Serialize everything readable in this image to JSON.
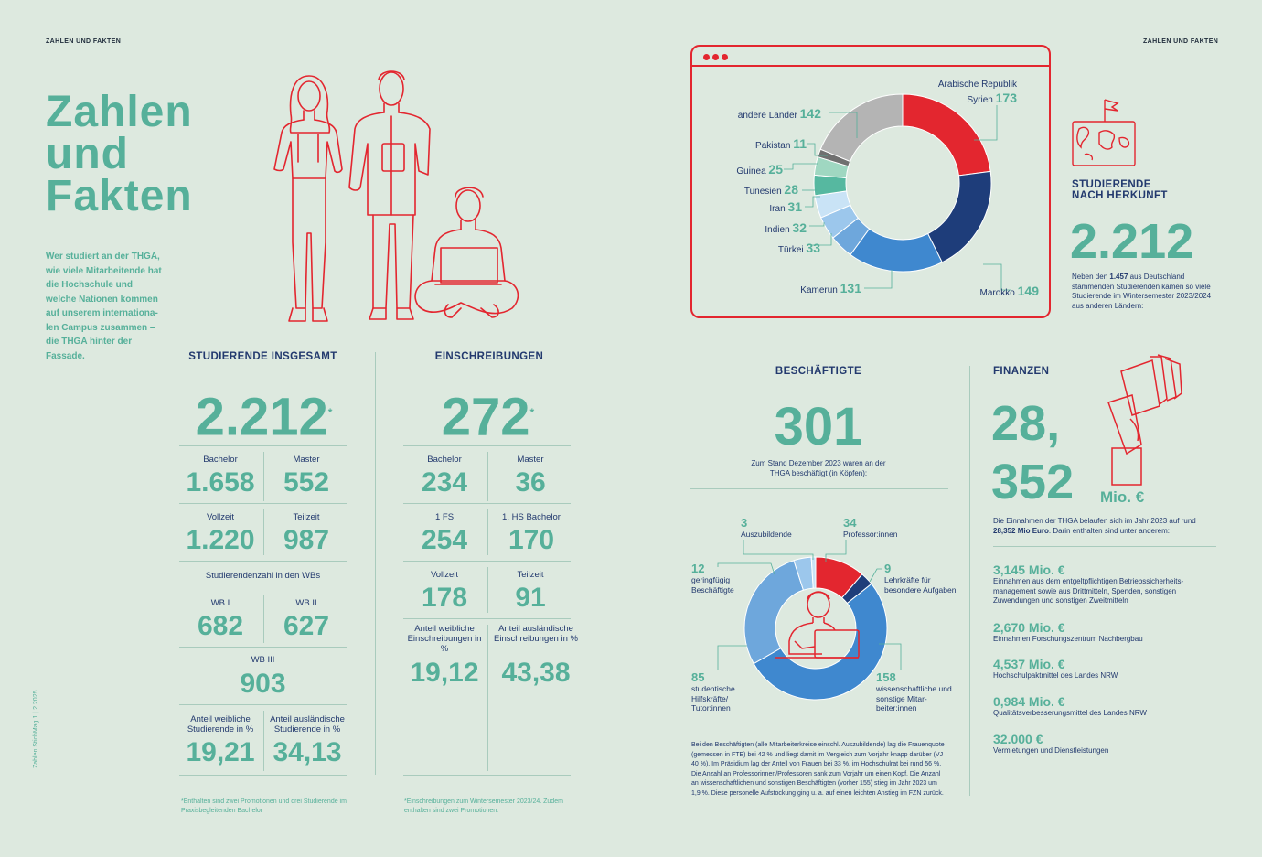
{
  "header": {
    "left": "ZAHLEN UND FAKTEN",
    "right": "ZAHLEN UND FAKTEN"
  },
  "title": {
    "line1": "Zahlen",
    "line2": "und",
    "line3": "Fakten"
  },
  "intro": "Wer studiert an der THGA, wie viele Mitar­beitende hat die Hoch­schule und welche Nat­ionen kommen auf unserem internationa­len Campus zusam­men – die THGA hinter der Fassade.",
  "side_caption": "Zahlen StichMag 1 | 2 2025",
  "studierende": {
    "title": "STUDIERENDE INSGESAMT",
    "total": "2.212",
    "star": "*",
    "bachelor_label": "Bachelor",
    "bachelor": "1.658",
    "master_label": "Master",
    "master": "552",
    "vollzeit_label": "Vollzeit",
    "vollzeit": "1.220",
    "teilzeit_label": "Teilzeit",
    "teilzeit": "987",
    "wb_title": "Studierendenzahl in den WBs",
    "wb1_label": "WB I",
    "wb1": "682",
    "wb2_label": "WB II",
    "wb2": "627",
    "wb3_label": "WB III",
    "wb3": "903",
    "weibl_label": "Anteil weibliche Studierende in %",
    "weibl": "19,21",
    "ausl_label": "Anteil ausländische Studierende in %",
    "ausl": "34,13",
    "footnote": "*Enthalten sind zwei Promotionen und drei Studierende im Praxisbegleitenden Bachelor"
  },
  "einschreibungen": {
    "title": "EINSCHREIBUNGEN",
    "total": "272",
    "star": "*",
    "bachelor_label": "Bachelor",
    "bachelor": "234",
    "master_label": "Master",
    "master": "36",
    "fs_label": "1 FS",
    "fs": "254",
    "hs_label": "1. HS Bachelor",
    "hs": "170",
    "vollzeit_label": "Vollzeit",
    "vollzeit": "178",
    "teilzeit_label": "Teilzeit",
    "teilzeit": "91",
    "weibl_label": "Anteil weibliche Einschreibungen in %",
    "weibl": "19,12",
    "ausl_label": "Anteil ausländische Einschreibungen in %",
    "ausl": "43,38",
    "footnote": "*Einschreibungen zum Wintersemester 2023/24. Zudem enthalten sind zwei Promotionen."
  },
  "herkunft": {
    "title_line1": "STUDIERENDE",
    "title_line2": "NACH HERKUNFT",
    "total": "2.212",
    "text_pre": "Neben den ",
    "text_bold": "1.457",
    "text_post": " aus Deutschland stammenden Studierenden kamen so viele Studierende im Wintersemester 2023/2024 aus anderen Ländern:"
  },
  "chart_data": [
    {
      "type": "pie",
      "categories": [
        "Arabische Republik Syrien",
        "Marokko",
        "Kamerun",
        "Türkei",
        "Indien",
        "Iran",
        "Tunesien",
        "Guinea",
        "Pakistan",
        "andere Länder"
      ],
      "values": [
        173,
        149,
        131,
        33,
        32,
        31,
        28,
        25,
        11,
        142
      ],
      "colors": [
        "#e3262f",
        "#1e3d7a",
        "#3f88cf",
        "#6ea7dc",
        "#9cc7ec",
        "#c9e3f6",
        "#56b8a0",
        "#9fd7c1",
        "#707070",
        "#b4b4b4"
      ]
    },
    {
      "type": "pie",
      "categories": [
        "Professor:innen",
        "Lehrkräfte für besondere Aufgaben",
        "wissenschaftliche und sonstige Mitarbeiter:innen",
        "studentische Hilfskräfte/ Tutor:innen",
        "geringfügig Beschäftigte",
        "Auszubildende"
      ],
      "values": [
        34,
        9,
        158,
        85,
        12,
        3
      ],
      "colors": [
        "#e3262f",
        "#1e3d7a",
        "#3f88cf",
        "#6ea7dc",
        "#9cc7ec",
        "#c9e3f6"
      ]
    }
  ],
  "donut_labels": {
    "syrien_a": "Arabische Republik",
    "syrien_b": "Syrien",
    "syrien": "173",
    "andere_label": "andere Länder",
    "andere": "142",
    "pakistan_label": "Pakistan",
    "pakistan": "11",
    "guinea_label": "Guinea",
    "guinea": "25",
    "tunesien_label": "Tunesien",
    "tunesien": "28",
    "iran_label": "Iran",
    "iran": "31",
    "indien_label": "Indien",
    "indien": "32",
    "tuerkei_label": "Türkei",
    "tuerkei": "33",
    "kamerun_label": "Kamerun",
    "kamerun": "131",
    "marokko_label": "Marokko",
    "marokko": "149"
  },
  "beschaeftigte": {
    "title": "BESCHÄFTIGTE",
    "total": "301",
    "sub": "Zum Stand Dezember 2023 waren an der THGA beschäftigt (in Köpfen):",
    "azubi_n": "3",
    "azubi": "Auszubildende",
    "prof_n": "34",
    "prof": "Professor:innen",
    "lehr_n": "9",
    "lehr": "Lehrkräfte für besondere Aufgaben",
    "ger_n": "12",
    "ger": "geringfügig Beschäftigte",
    "stud_n": "85",
    "stud": "studentische Hilfskräfte/ Tutor:innen",
    "wiss_n": "158",
    "wiss": "wissenschaftliche und sonstige Mitar­beiter:innen",
    "text": "Bei den Beschäftigten (alle Mitarbeiterkreise einschl. Auszubildende) lag die Frauenquote (gemessen in FTE) bei 42 % und liegt damit im Vergleich zum Vorjahr knapp darüber (VJ 40 %). Im Präsidium lag der Anteil von Frauen bei 33 %, im Hochschulrat bei rund 56 %. Die Anzahl an Professorinnen/Professoren sank zum Vorjahr um einen Kopf. Die Anzahl an wissenschaftlichen und sonstigen Beschäftigten (vorher 155) stieg im Jahr 2023 um 1,9 %. Diese personelle Aufstockung ging u. a. auf einen leichten Anstieg im FZN zurück."
  },
  "finanzen": {
    "title": "FINANZEN",
    "big1": "28,",
    "big2": "352",
    "unit": "Mio. €",
    "text_pre": "Die Einnahmen der THGA belaufen sich im Jahr 2023 auf rund ",
    "text_bold": "28,352 Mio Euro",
    "text_post": ". Darin enthalten sind unter anderem:",
    "items": [
      {
        "value": "3,145 Mio. €",
        "text": "Einnahmen aus dem entgeltpflichtigen Betriebssicherheits­management sowie aus Drittmitteln, Spenden, sonstigen Zuwendungen und sonstigen Zweitmitteln"
      },
      {
        "value": "2,670 Mio. €",
        "text": "Einnahmen Forschungszentrum Nachbergbau"
      },
      {
        "value": "4,537 Mio. €",
        "text": "Hochschulpaktmittel des Landes NRW"
      },
      {
        "value": "0,984 Mio. €",
        "text": "Qualitätsverbesserungsmittel des Landes NRW"
      },
      {
        "value": "32.000 €",
        "text": "Vermietungen und Dienstleistungen"
      }
    ]
  }
}
